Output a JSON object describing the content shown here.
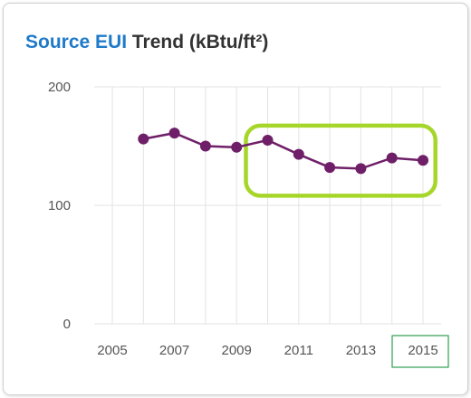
{
  "header": {
    "title_accent": "Source EUI",
    "title_rest": " Trend (kBtu/ft²)"
  },
  "colors": {
    "accent": "#1f7ac9",
    "series": "#6e1f68",
    "highlight": "#a6d62a",
    "year_box": "#2e9e4f"
  },
  "chart_data": {
    "type": "line",
    "title": "Source EUI Trend (kBtu/ft²)",
    "xlabel": "",
    "ylabel": "",
    "xlim": [
      2005,
      2015
    ],
    "ylim": [
      0,
      200
    ],
    "x_ticks": [
      "2005",
      "2007",
      "2009",
      "2011",
      "2013",
      "2015"
    ],
    "y_ticks": [
      "200",
      "100",
      "0"
    ],
    "grid": true,
    "series": [
      {
        "x": [
          2006,
          2007,
          2008,
          2009,
          2010,
          2011,
          2012,
          2013,
          2014,
          2015
        ],
        "values": [
          156,
          161,
          150,
          149,
          155,
          143,
          132,
          131,
          140,
          138
        ]
      }
    ],
    "highlighted_x_tick": "2015"
  }
}
